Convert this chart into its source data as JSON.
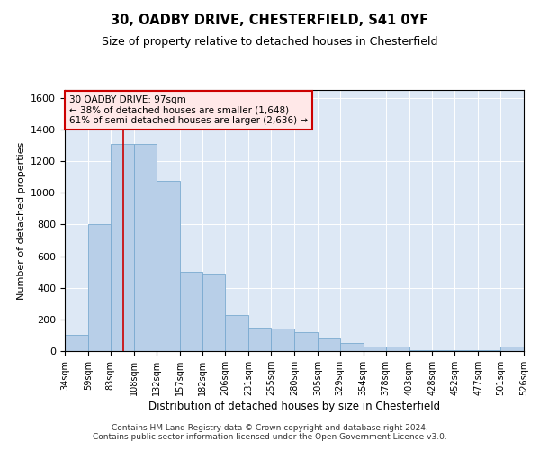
{
  "title1": "30, OADBY DRIVE, CHESTERFIELD, S41 0YF",
  "title2": "Size of property relative to detached houses in Chesterfield",
  "xlabel": "Distribution of detached houses by size in Chesterfield",
  "ylabel": "Number of detached properties",
  "bin_labels": [
    "34sqm",
    "59sqm",
    "83sqm",
    "108sqm",
    "132sqm",
    "157sqm",
    "182sqm",
    "206sqm",
    "231sqm",
    "255sqm",
    "280sqm",
    "305sqm",
    "329sqm",
    "354sqm",
    "378sqm",
    "403sqm",
    "428sqm",
    "452sqm",
    "477sqm",
    "501sqm",
    "526sqm"
  ],
  "bar_lefts": [
    34,
    59,
    83,
    108,
    132,
    157,
    182,
    206,
    231,
    255,
    280,
    305,
    329,
    354,
    378,
    403,
    428,
    452,
    477,
    501
  ],
  "bar_widths": [
    25,
    24,
    25,
    24,
    25,
    25,
    24,
    25,
    24,
    25,
    25,
    24,
    25,
    24,
    25,
    25,
    24,
    25,
    24,
    25
  ],
  "bar_heights": [
    100,
    800,
    1310,
    1310,
    1075,
    500,
    490,
    225,
    150,
    140,
    120,
    80,
    50,
    28,
    28,
    5,
    5,
    3,
    3,
    28
  ],
  "bar_color": "#b8cfe8",
  "bar_edge_color": "#7aaad0",
  "property_sqm": 97,
  "vline_color": "#cc0000",
  "vline_x": 97,
  "ann_title": "30 OADBY DRIVE: 97sqm",
  "ann_line2": "← 38% of detached houses are smaller (1,648)",
  "ann_line3": "61% of semi-detached houses are larger (2,636) →",
  "ann_facecolor": "#ffe8e8",
  "ann_edgecolor": "#cc0000",
  "ylim": [
    0,
    1650
  ],
  "xlim": [
    34,
    526
  ],
  "yticks": [
    0,
    200,
    400,
    600,
    800,
    1000,
    1200,
    1400,
    1600
  ],
  "bg_color": "#dde8f5",
  "footer": "Contains HM Land Registry data © Crown copyright and database right 2024.\nContains public sector information licensed under the Open Government Licence v3.0."
}
